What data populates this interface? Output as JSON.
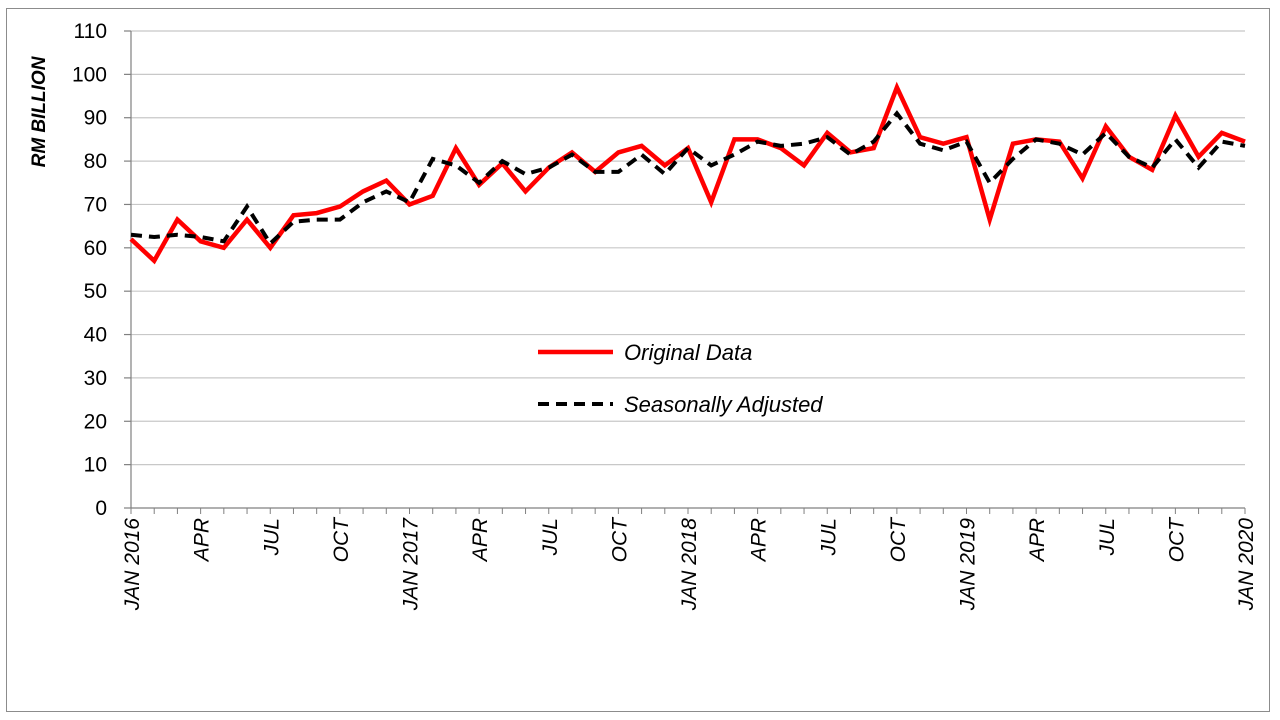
{
  "chart_data": {
    "type": "line",
    "title": "",
    "xlabel": "",
    "ylabel": "RM BILLION",
    "ylim": [
      0,
      110
    ],
    "yticks": [
      0,
      10,
      20,
      30,
      40,
      50,
      60,
      70,
      80,
      90,
      100,
      110
    ],
    "grid": true,
    "legend_position": "center",
    "x_start": "JAN 2016",
    "x_end": "JAN 2020",
    "x_tick_labels": [
      {
        "index": 0,
        "label": "JAN 2016"
      },
      {
        "index": 3,
        "label": "APR"
      },
      {
        "index": 6,
        "label": "JUL"
      },
      {
        "index": 9,
        "label": "OCT"
      },
      {
        "index": 12,
        "label": "JAN 2017"
      },
      {
        "index": 15,
        "label": "APR"
      },
      {
        "index": 18,
        "label": "JUL"
      },
      {
        "index": 21,
        "label": "OCT"
      },
      {
        "index": 24,
        "label": "JAN 2018"
      },
      {
        "index": 27,
        "label": "APR"
      },
      {
        "index": 30,
        "label": "JUL"
      },
      {
        "index": 33,
        "label": "OCT"
      },
      {
        "index": 36,
        "label": "JAN 2019"
      },
      {
        "index": 39,
        "label": "APR"
      },
      {
        "index": 42,
        "label": "JUL"
      },
      {
        "index": 45,
        "label": "OCT"
      },
      {
        "index": 48,
        "label": "JAN 2020"
      }
    ],
    "series": [
      {
        "name": "Original Data",
        "color": "#ff0000",
        "style": "solid",
        "values": [
          62,
          57,
          66.5,
          61.5,
          60,
          66.5,
          60,
          67.5,
          68,
          69.5,
          73,
          75.5,
          70,
          72,
          83,
          74.5,
          79.5,
          73,
          78.5,
          82,
          77.5,
          82,
          83.5,
          79,
          83,
          70.5,
          85,
          85,
          83,
          79,
          86.5,
          82,
          83,
          97,
          85.5,
          84,
          85.5,
          66.5,
          84,
          85,
          84.5,
          76,
          88,
          81,
          78,
          90.5,
          81,
          86.5,
          84.5
        ]
      },
      {
        "name": "Seasonally Adjusted",
        "color": "#000000",
        "style": "dashed",
        "values": [
          63,
          62.5,
          63,
          62.5,
          61.5,
          69.5,
          61,
          66,
          66.5,
          66.5,
          70.5,
          73,
          70.5,
          80.5,
          79,
          75,
          80,
          77,
          78.5,
          81.5,
          77.5,
          77.5,
          81.5,
          77,
          83,
          79,
          81.5,
          84.5,
          83.5,
          84,
          85.5,
          81.5,
          84.5,
          91,
          84,
          82.5,
          84.5,
          75,
          80.5,
          85,
          84,
          81.5,
          86.5,
          81,
          78.5,
          85,
          78.5,
          84.5,
          83.5
        ]
      }
    ]
  }
}
